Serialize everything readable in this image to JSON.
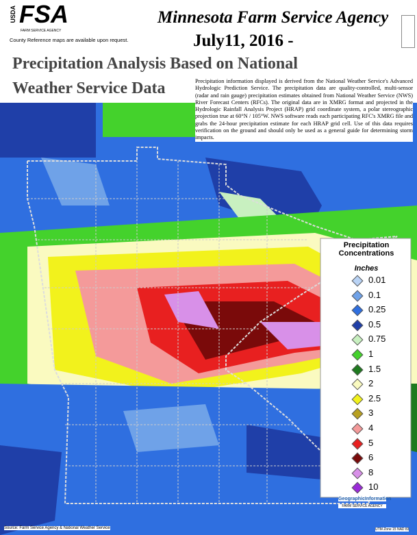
{
  "header": {
    "usda": "USDA",
    "fsa": "FSA",
    "fsa_sub": "FARM SERVICE AGENCY",
    "note": "County Reference maps are available upon request.",
    "agency": "Minnesota Farm Service Agency",
    "date": "July11, 2016 -",
    "title_line1": "Precipitation Analysis Based on National",
    "title_line2": "Weather Service Data"
  },
  "description": "Precipitation information displayed is derived from the National Weather Service's Advanced Hydrologic Prediction Service. The precipitation data are quality-controlled, multi-sensor (radar and rain gauge) precipitation estimates obtained from National Weather Service (NWS) River Forecast Centers (RFCs). The original data are in XMRG format and projected in the Hydrologic Rainfall Analysis Project (HRAP) grid coordinate system, a polar stereographic projection true at 60°N / 105°W. NWS software reads each participating RFC's XMRG file and grabs the 24-hour precipitation estimate for each HRAP grid cell. Use of this data requires verification on the ground and should only be used as a general guide for determining storm impacts.",
  "legend": {
    "title": "Precipitation Concentrations",
    "unit": "Inches",
    "items": [
      {
        "value": 0.01,
        "color": "#b9d3f5"
      },
      {
        "value": 0.1,
        "color": "#6fa2e8"
      },
      {
        "value": 0.25,
        "color": "#2f6fe0"
      },
      {
        "value": 0.5,
        "color": "#1f3fa8"
      },
      {
        "value": 0.75,
        "color": "#c8f0c0"
      },
      {
        "value": 1,
        "color": "#44d22c"
      },
      {
        "value": 1.5,
        "color": "#1f7a1f"
      },
      {
        "value": 2,
        "color": "#fafac0"
      },
      {
        "value": 2.5,
        "color": "#f2f21c"
      },
      {
        "value": 3,
        "color": "#b8a020"
      },
      {
        "value": 4,
        "color": "#f49a9a"
      },
      {
        "value": 5,
        "color": "#e82020"
      },
      {
        "value": 6,
        "color": "#7a0a0a"
      },
      {
        "value": 8,
        "color": "#d890e8"
      },
      {
        "value": 10,
        "color": "#9a2ad8"
      }
    ]
  },
  "footer": {
    "source": "Source: Farm Service Agency & National Weather Service",
    "projection": "UTM Zone 15 NAD 83",
    "logo_title": "GeographicInformation",
    "logo_sub": "FARM SERVICE AGENCY"
  }
}
